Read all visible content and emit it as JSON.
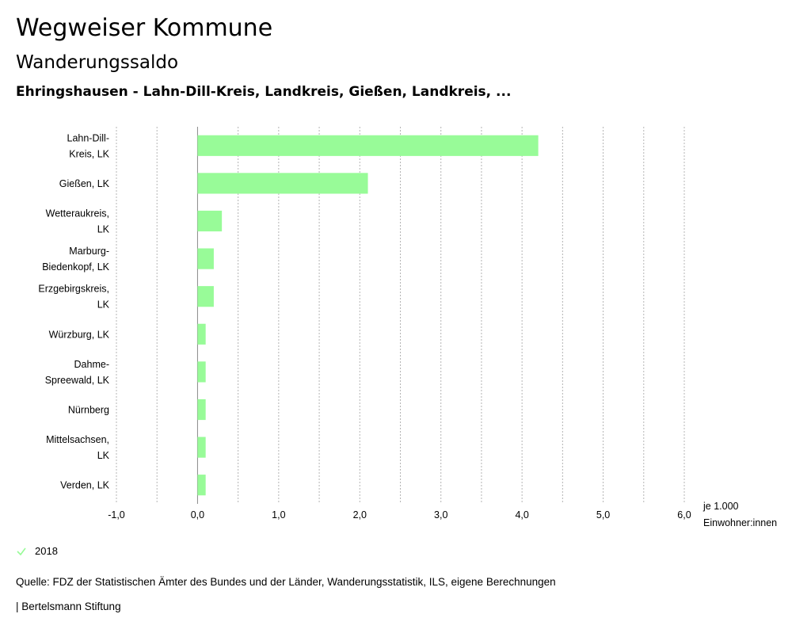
{
  "header": {
    "title": "Wegweiser Kommune",
    "subtitle": "Wanderungssaldo",
    "selection": "Ehringshausen - Lahn-Dill-Kreis, Landkreis, Gießen, Landkreis, ..."
  },
  "colors": {
    "bar": "#98fb98",
    "grid": "#b4b4b4",
    "check": "#98fb98"
  },
  "chart_data": {
    "type": "bar",
    "orientation": "horizontal",
    "categories": [
      [
        "Lahn-Dill-",
        "Kreis, LK"
      ],
      [
        "Gießen, LK"
      ],
      [
        "Wetteraukreis,",
        "LK"
      ],
      [
        "Marburg-",
        "Biedenkopf, LK"
      ],
      [
        "Erzgebirgskreis,",
        "LK"
      ],
      [
        "Würzburg, LK"
      ],
      [
        "Dahme-",
        "Spreewald, LK"
      ],
      [
        "Nürnberg"
      ],
      [
        "Mittelsachsen,",
        "LK"
      ],
      [
        "Verden, LK"
      ]
    ],
    "series": [
      {
        "name": "2018",
        "values": [
          4.2,
          2.1,
          0.3,
          0.2,
          0.2,
          0.1,
          0.1,
          0.1,
          0.1,
          0.1
        ]
      }
    ],
    "xlim": [
      -1.0,
      6.0
    ],
    "xticks": [
      -1.0,
      0.0,
      1.0,
      2.0,
      3.0,
      4.0,
      5.0,
      6.0
    ],
    "xtick_labels": [
      "-1,0",
      "0,0",
      "1,0",
      "2,0",
      "3,0",
      "4,0",
      "5,0",
      "6,0"
    ],
    "xlabel": [
      "je 1.000",
      "Einwohner:innen"
    ],
    "grid": true,
    "legend_placement": "bottom-left"
  },
  "legend": {
    "label": "2018"
  },
  "footer": {
    "source": "Quelle: FDZ der Statistischen Ämter des Bundes und der Länder, Wanderungsstatistik, ILS, eigene Berechnungen",
    "brand": "| Bertelsmann Stiftung"
  }
}
